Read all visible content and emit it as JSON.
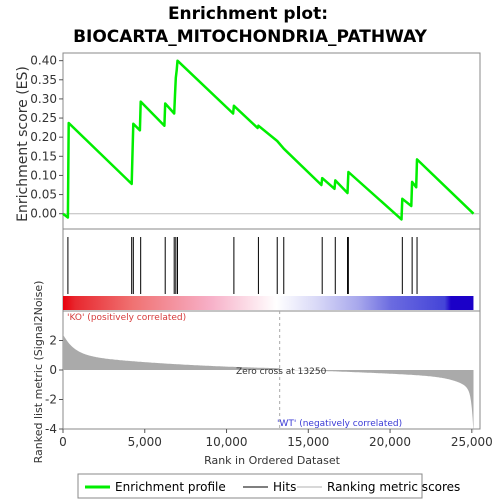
{
  "chart_data": {
    "type": "line",
    "title_line1": "Enrichment plot:",
    "title_line2": "BIOCARTA_MITOCHONDRIA_PATHWAY",
    "ylabel_top": "Enrichment score (ES)",
    "ylabel_bottom": "Ranked list metric (Signal2Noise)",
    "xlabel": "Rank in Ordered Dataset",
    "xlim": [
      0,
      25500
    ],
    "ylim_top": [
      -0.04,
      0.42
    ],
    "ylim_bottom": [
      -4,
      4
    ],
    "x_ticks": [
      0,
      5000,
      10000,
      15000,
      20000,
      25000
    ],
    "x_tick_labels": [
      "0",
      "5,000",
      "10,000",
      "15,000",
      "20,000",
      "25,000"
    ],
    "y_ticks_top": [
      0.0,
      0.05,
      0.1,
      0.15,
      0.2,
      0.25,
      0.3,
      0.35,
      0.4
    ],
    "y_tick_labels_top": [
      "0.00",
      "0.05",
      "0.10",
      "0.15",
      "0.20",
      "0.25",
      "0.30",
      "0.35",
      "0.40"
    ],
    "y_ticks_bottom": [
      -4,
      -2,
      0,
      2
    ],
    "y_tick_labels_bottom": [
      "-4",
      "-2",
      "0",
      "2"
    ],
    "series": [
      {
        "name": "Enrichment profile",
        "color": "#00ee00",
        "x": [
          0,
          300,
          350,
          4200,
          4250,
          4300,
          4700,
          4750,
          6200,
          6250,
          6800,
          6850,
          6900,
          6950,
          7000,
          10400,
          10450,
          11900,
          11950,
          13100,
          13500,
          15800,
          15850,
          16600,
          16650,
          17400,
          17450,
          20700,
          20750,
          21300,
          21350,
          21600,
          21650,
          25100
        ],
        "y": [
          0.0,
          -0.01,
          0.237,
          0.078,
          0.158,
          0.235,
          0.218,
          0.293,
          0.23,
          0.288,
          0.262,
          0.31,
          0.355,
          0.375,
          0.4,
          0.262,
          0.282,
          0.224,
          0.23,
          0.19,
          0.17,
          0.075,
          0.093,
          0.065,
          0.087,
          0.054,
          0.109,
          -0.015,
          0.039,
          0.02,
          0.083,
          0.069,
          0.142,
          0.0
        ]
      }
    ],
    "hits": [
      300,
      4200,
      4300,
      4750,
      6250,
      6800,
      6900,
      7000,
      10450,
      11950,
      13100,
      13500,
      15850,
      16650,
      17400,
      17450,
      20750,
      21350,
      21650
    ],
    "zero_cross": 13250,
    "zero_cross_label": "Zero cross at 13250",
    "pos_label": "'KO' (positively correlated)",
    "neg_label": "'WT' (negatively correlated)",
    "colors": {
      "profile": "#00ee00",
      "pos": "#e0191b",
      "neg": "#2a2cd9",
      "metric_fill": "#aaaaaa",
      "pos_text": "#d63a3a",
      "neg_text": "#3a3ad6"
    },
    "legend": {
      "items": [
        {
          "label": "Enrichment profile",
          "color": "#00ee00",
          "kind": "line-thick"
        },
        {
          "label": "Hits",
          "color": "#555555",
          "kind": "line-thin"
        },
        {
          "label": "Ranking metric scores",
          "color": "#cccccc",
          "kind": "line-thin"
        }
      ]
    }
  }
}
